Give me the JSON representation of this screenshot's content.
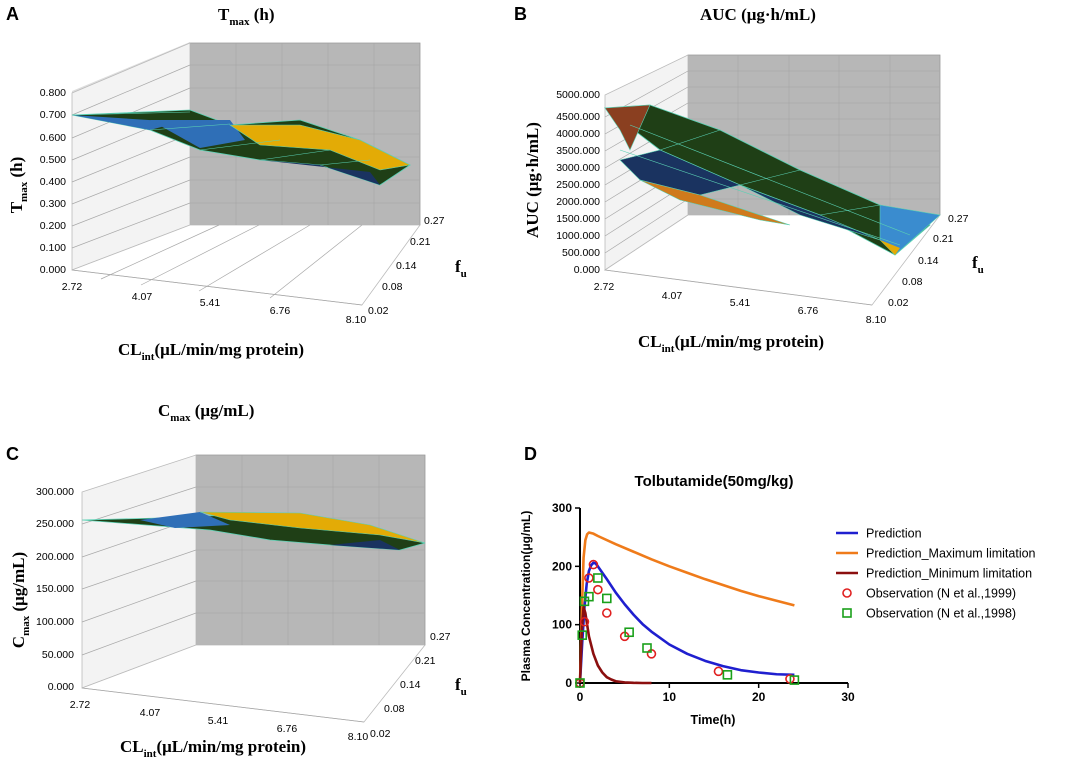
{
  "colors": {
    "blue": "#2f6fb7",
    "gold": "#e3ab06",
    "darkgreen": "#1f3f16",
    "navy": "#1a3360",
    "orange": "#cf7a1c",
    "maroon": "#8b2b28",
    "wall": "#b7b7b7",
    "grid": "#a8a8a8",
    "mesh": "#5ad1b4"
  },
  "panels": [
    {
      "letter": "A",
      "title_main": "T",
      "title_sub": "max",
      "title_unit": " (h)",
      "z_label_main": "T",
      "z_label_sub": "max",
      "z_label_unit": " (h)",
      "x_label_main": "CL",
      "x_label_sub": "int",
      "x_label_unit": "(μL/min/mg protein)",
      "y_label_main": "f",
      "y_label_sub": "u",
      "z_ticks": [
        "0.000",
        "0.100",
        "0.200",
        "0.300",
        "0.400",
        "0.500",
        "0.600",
        "0.700",
        "0.800"
      ],
      "x_ticks": [
        "2.72",
        "4.07",
        "5.41",
        "6.76",
        "8.10"
      ],
      "y_ticks": [
        "0.02",
        "0.08",
        "0.14",
        "0.21",
        "0.27"
      ]
    },
    {
      "letter": "B",
      "title_main": "AUC",
      "title_sub": "",
      "title_unit": "  (μg·h/mL)",
      "z_label_main": "AUC (μg·h/mL)",
      "z_label_sub": "",
      "z_label_unit": "",
      "x_label_main": "CL",
      "x_label_sub": "int",
      "x_label_unit": "(μL/min/mg protein)",
      "y_label_main": "f",
      "y_label_sub": "u",
      "z_ticks": [
        "0.000",
        "500.000",
        "1000.000",
        "1500.000",
        "2000.000",
        "2500.000",
        "3000.000",
        "3500.000",
        "4000.000",
        "4500.000",
        "5000.000"
      ],
      "x_ticks": [
        "2.72",
        "4.07",
        "5.41",
        "6.76",
        "8.10"
      ],
      "y_ticks": [
        "0.02",
        "0.08",
        "0.14",
        "0.21",
        "0.27"
      ]
    },
    {
      "letter": "C",
      "title_main": "C",
      "title_sub": "max",
      "title_unit": " (μg/mL)",
      "z_label_main": "C",
      "z_label_sub": "max",
      "z_label_unit": " (μg/mL)",
      "x_label_main": "CL",
      "x_label_sub": "int",
      "x_label_unit": "(μL/min/mg protein)",
      "y_label_main": "f",
      "y_label_sub": "u",
      "z_ticks": [
        "0.000",
        "50.000",
        "100.000",
        "150.000",
        "200.000",
        "250.000",
        "300.000"
      ],
      "x_ticks": [
        "2.72",
        "4.07",
        "5.41",
        "6.76",
        "8.10"
      ],
      "y_ticks": [
        "0.02",
        "0.08",
        "0.14",
        "0.21",
        "0.27"
      ]
    }
  ],
  "chart_data": {
    "type": "line",
    "panel_letter": "D",
    "title": "Tolbutamide(50mg/kg)",
    "xlabel": "Time(h)",
    "ylabel": "Plasma Concentration(μg/mL)",
    "xlim": [
      0,
      30
    ],
    "ylim": [
      0,
      300
    ],
    "xticks": [
      "0",
      "10",
      "20",
      "30"
    ],
    "yticks": [
      "0",
      "100",
      "200",
      "300"
    ],
    "series": [
      {
        "name": "Prediction",
        "kind": "line",
        "color": "#1f1fcf",
        "x": [
          0,
          0.25,
          0.5,
          0.75,
          1,
          1.25,
          1.5,
          1.75,
          2,
          3,
          4,
          5,
          6,
          7,
          8,
          10,
          12,
          14,
          16,
          18,
          20,
          22,
          24
        ],
        "y": [
          0,
          70,
          130,
          170,
          192,
          202,
          206,
          205,
          200,
          178,
          155,
          135,
          117,
          101,
          88,
          66,
          50,
          38,
          29,
          22,
          18,
          15,
          14
        ]
      },
      {
        "name": "Prediction_Maximum limitation",
        "kind": "line",
        "color": "#ef7b1a",
        "x": [
          0,
          0.2,
          0.4,
          0.6,
          0.8,
          1,
          1.5,
          2,
          4,
          6,
          8,
          10,
          12,
          14,
          16,
          18,
          20,
          22,
          24
        ],
        "y": [
          0,
          120,
          215,
          245,
          255,
          258,
          256,
          252,
          238,
          225,
          212,
          200,
          189,
          178,
          168,
          158,
          149,
          141,
          133
        ]
      },
      {
        "name": "Prediction_Minimum limitation",
        "kind": "line",
        "color": "#8b0f0f",
        "x": [
          0,
          0.2,
          0.4,
          0.6,
          0.8,
          1,
          1.5,
          2,
          2.5,
          3,
          3.5,
          4,
          5,
          6,
          7,
          8
        ],
        "y": [
          0,
          90,
          130,
          120,
          100,
          80,
          50,
          30,
          18,
          10,
          6,
          3,
          1,
          0.3,
          0,
          0
        ]
      },
      {
        "name": "Observation (N et al.,1999)",
        "kind": "scatter",
        "marker": "circle",
        "color": "#e02020",
        "x": [
          0,
          0.5,
          1,
          1.5,
          2,
          3,
          5,
          8,
          15.5,
          23.5
        ],
        "y": [
          0,
          105,
          180,
          203,
          160,
          120,
          80,
          50,
          20,
          7
        ]
      },
      {
        "name": "Observation (N et al.,1998)",
        "kind": "scatter",
        "marker": "square",
        "color": "#1aa01a",
        "x": [
          0,
          0.25,
          0.5,
          1,
          2,
          3,
          5.5,
          7.5,
          16.5,
          24
        ],
        "y": [
          0,
          82,
          140,
          148,
          180,
          145,
          87,
          60,
          14,
          5
        ]
      }
    ]
  }
}
